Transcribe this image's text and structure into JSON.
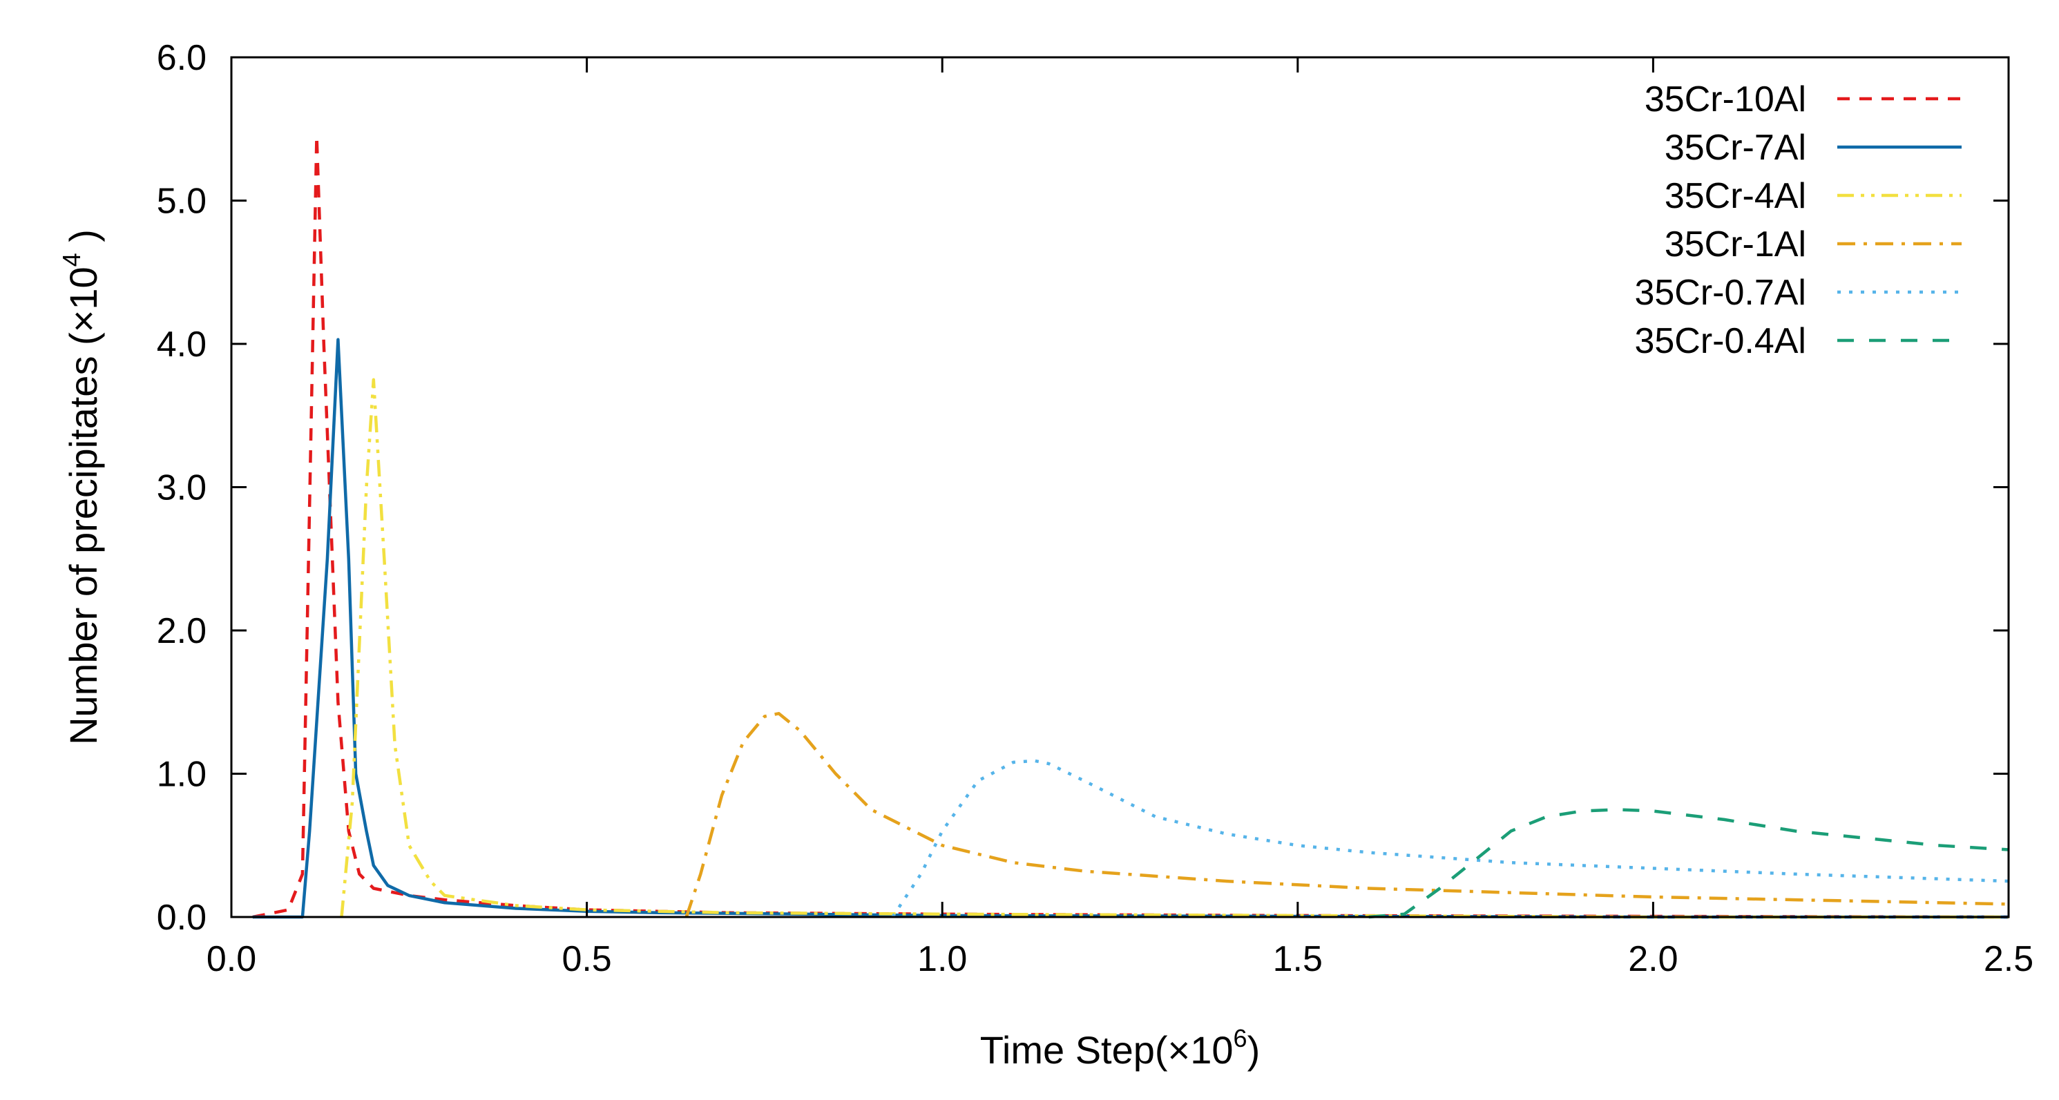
{
  "chart_data": {
    "type": "line",
    "title": "",
    "xlabel": {
      "text": "Time Step(×10",
      "sup": "6",
      "close": ")"
    },
    "ylabel": {
      "text": "Number of precipitates (×10",
      "sup": "4",
      "close": " )"
    },
    "xlim": [
      0.0,
      2.5
    ],
    "ylim": [
      0.0,
      6.0
    ],
    "xticks": [
      0.0,
      0.5,
      1.0,
      1.5,
      2.0,
      2.5
    ],
    "xtick_labels": [
      "0.0",
      "0.5",
      "1.0",
      "1.5",
      "2.0",
      "2.5"
    ],
    "yticks": [
      0.0,
      1.0,
      2.0,
      3.0,
      4.0,
      5.0,
      6.0
    ],
    "ytick_labels": [
      "0.0",
      "1.0",
      "2.0",
      "3.0",
      "4.0",
      "5.0",
      "6.0"
    ],
    "legend_position": "top-right",
    "grid": false,
    "series": [
      {
        "name": "35Cr-10Al",
        "color": "#e41a1c",
        "dash": "dashed",
        "x": [
          0.03,
          0.08,
          0.1,
          0.12,
          0.13,
          0.15,
          0.165,
          0.18,
          0.2,
          0.25,
          0.3,
          0.4,
          0.5,
          0.6,
          0.7,
          1.0,
          1.5,
          2.0,
          2.5
        ],
        "y": [
          0.0,
          0.05,
          0.3,
          5.45,
          4.0,
          1.5,
          0.6,
          0.3,
          0.2,
          0.15,
          0.12,
          0.08,
          0.05,
          0.04,
          0.03,
          0.02,
          0.01,
          0.005,
          0.0
        ]
      },
      {
        "name": "35Cr-7Al",
        "color": "#0f6aa8",
        "dash": "solid",
        "x": [
          0.03,
          0.1,
          0.11,
          0.135,
          0.15,
          0.165,
          0.175,
          0.19,
          0.2,
          0.22,
          0.25,
          0.3,
          0.35,
          0.4,
          0.5,
          0.6,
          0.8,
          1.0,
          1.5,
          2.0,
          2.5
        ],
        "y": [
          0.0,
          0.0,
          0.6,
          2.5,
          4.03,
          2.5,
          1.0,
          0.6,
          0.36,
          0.22,
          0.15,
          0.1,
          0.08,
          0.06,
          0.04,
          0.03,
          0.02,
          0.01,
          0.005,
          0.0,
          0.0
        ]
      },
      {
        "name": "35Cr-4Al",
        "color": "#f2e040",
        "dash": "dash-dot-dot",
        "x": [
          0.155,
          0.17,
          0.19,
          0.2,
          0.215,
          0.23,
          0.25,
          0.28,
          0.3,
          0.4,
          0.5,
          0.7,
          1.0,
          1.5,
          2.0,
          2.5
        ],
        "y": [
          0.0,
          0.8,
          3.0,
          3.75,
          2.5,
          1.2,
          0.5,
          0.25,
          0.15,
          0.08,
          0.05,
          0.03,
          0.02,
          0.01,
          0.0,
          0.0
        ]
      },
      {
        "name": "35Cr-1Al",
        "color": "#e5a21c",
        "dash": "dash-dot",
        "x": [
          0.64,
          0.66,
          0.69,
          0.72,
          0.75,
          0.77,
          0.8,
          0.85,
          0.9,
          1.0,
          1.1,
          1.2,
          1.4,
          1.6,
          1.8,
          2.0,
          2.2,
          2.5
        ],
        "y": [
          0.0,
          0.3,
          0.85,
          1.22,
          1.4,
          1.42,
          1.3,
          1.0,
          0.75,
          0.5,
          0.38,
          0.32,
          0.25,
          0.2,
          0.17,
          0.14,
          0.12,
          0.09
        ]
      },
      {
        "name": "35Cr-0.7Al",
        "color": "#56b4e9",
        "dash": "dotted",
        "x": [
          0.93,
          0.97,
          1.0,
          1.05,
          1.1,
          1.13,
          1.15,
          1.2,
          1.3,
          1.4,
          1.5,
          1.6,
          1.8,
          2.0,
          2.2,
          2.5
        ],
        "y": [
          0.0,
          0.3,
          0.6,
          0.95,
          1.08,
          1.09,
          1.07,
          0.95,
          0.7,
          0.58,
          0.5,
          0.45,
          0.38,
          0.34,
          0.3,
          0.25
        ]
      },
      {
        "name": "35Cr-0.4Al",
        "color": "#1b9e77",
        "dash": "long-dashed",
        "x": [
          1.6,
          1.65,
          1.7,
          1.75,
          1.8,
          1.85,
          1.9,
          1.95,
          2.0,
          2.1,
          2.2,
          2.3,
          2.4,
          2.5
        ],
        "y": [
          0.0,
          0.02,
          0.2,
          0.4,
          0.6,
          0.7,
          0.74,
          0.75,
          0.74,
          0.68,
          0.6,
          0.55,
          0.5,
          0.47
        ]
      }
    ]
  }
}
